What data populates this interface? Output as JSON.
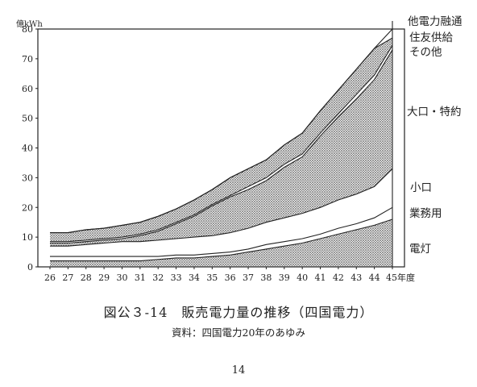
{
  "chart_data": {
    "type": "area",
    "title": "図公３-14　販売電力量の推移（四国電力）",
    "source": "資料：四国電力20年のあゆみ",
    "y_unit": "億kWh",
    "x_unit": "年度",
    "ylim": [
      0,
      80
    ],
    "y_ticks": [
      "0",
      "10",
      "20",
      "30",
      "40",
      "50",
      "60",
      "70",
      "80"
    ],
    "x": [
      "26",
      "27",
      "28",
      "29",
      "30",
      "31",
      "32",
      "33",
      "34",
      "35",
      "36",
      "37",
      "38",
      "39",
      "40",
      "41",
      "42",
      "43",
      "44",
      "45"
    ],
    "x_tick_labels": [
      "26",
      "27",
      "28",
      "29",
      "30",
      "31",
      "32",
      "33",
      "34",
      "35",
      "36",
      "37",
      "38",
      "39",
      "40",
      "41",
      "42",
      "43",
      "44",
      "45年度"
    ],
    "stacked": true,
    "series": [
      {
        "name": "電灯",
        "values": [
          2,
          2,
          2,
          2,
          2,
          2,
          2.5,
          3,
          3,
          3.5,
          4,
          5,
          6,
          7,
          8,
          9.5,
          11,
          12.5,
          14,
          16
        ]
      },
      {
        "name": "業務用",
        "values": [
          1.5,
          1.5,
          1.5,
          1.5,
          1.5,
          1.5,
          1,
          1,
          1,
          1,
          1,
          1,
          1.5,
          1.5,
          1.5,
          1.5,
          2,
          2,
          2.5,
          4
        ]
      },
      {
        "name": "小口",
        "values": [
          3.5,
          3.5,
          4,
          4.5,
          5,
          5,
          5.5,
          5.5,
          6,
          6,
          6.5,
          7,
          7.5,
          8,
          8.5,
          9,
          9.5,
          10,
          10.5,
          13
        ]
      },
      {
        "name": "大口・特約",
        "values": [
          1,
          1,
          1,
          1,
          1,
          2,
          3,
          5,
          7,
          10,
          12,
          13,
          14,
          17,
          19,
          24,
          28,
          32,
          36,
          40
        ]
      },
      {
        "name": "その他",
        "values": [
          0.5,
          0.5,
          0.5,
          0.5,
          0.5,
          0.5,
          0.5,
          0.5,
          0.5,
          0.5,
          0.5,
          1,
          1,
          1,
          1,
          1,
          1,
          1.5,
          1.5,
          1.5
        ]
      },
      {
        "name": "住友供給",
        "values": [
          3,
          3,
          3.5,
          3.5,
          4,
          4,
          4.5,
          4.5,
          5,
          5,
          6,
          6,
          6,
          6.5,
          7,
          7.5,
          8,
          8.5,
          9,
          2.5
        ]
      },
      {
        "name": "他電力融通",
        "values": [
          0,
          0,
          0,
          0,
          0,
          0,
          0,
          0,
          0,
          0,
          0,
          0,
          0,
          0,
          0,
          0,
          0,
          0,
          0,
          3
        ]
      }
    ],
    "series_fills": [
      "dots",
      "white",
      "white",
      "dots",
      "white",
      "dots",
      "white"
    ],
    "page_number": "14"
  }
}
